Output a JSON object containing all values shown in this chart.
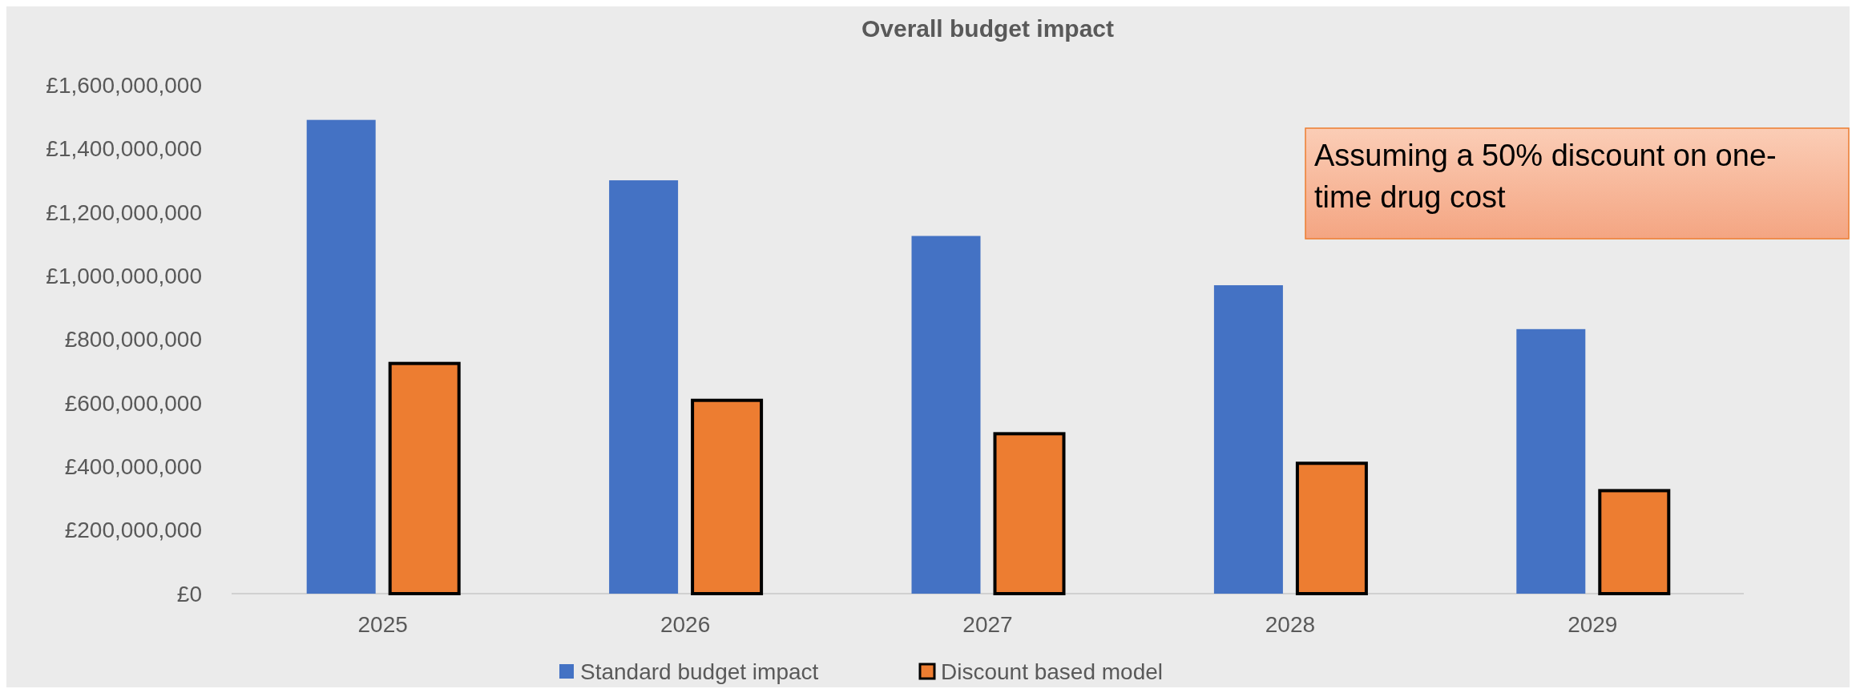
{
  "chart_data": {
    "type": "bar",
    "title": "Overall budget impact",
    "categories": [
      "2025",
      "2026",
      "2027",
      "2028",
      "2029"
    ],
    "series": [
      {
        "name": "Standard budget impact",
        "color": "#4472c4",
        "values": [
          1490000000,
          1300000000,
          1125000000,
          970000000,
          832000000
        ]
      },
      {
        "name": "Discount based model",
        "color": "#ed7d31",
        "values": [
          724000000,
          608000000,
          503000000,
          410000000,
          324000000
        ]
      }
    ],
    "ylim": [
      0,
      1600000000
    ],
    "yticks": [
      {
        "value": 0,
        "label": "£0"
      },
      {
        "value": 200000000,
        "label": "£200,000,000"
      },
      {
        "value": 400000000,
        "label": "£400,000,000"
      },
      {
        "value": 600000000,
        "label": "£600,000,000"
      },
      {
        "value": 800000000,
        "label": "£800,000,000"
      },
      {
        "value": 1000000000,
        "label": "£1,000,000,000"
      },
      {
        "value": 1200000000,
        "label": "£1,200,000,000"
      },
      {
        "value": 1400000000,
        "label": "£1,400,000,000"
      },
      {
        "value": 1600000000,
        "label": "£1,600,000,000"
      }
    ],
    "grid": false,
    "legend": "bottom",
    "annotations": [
      "Assuming a 50% discount on one-time drug cost"
    ]
  }
}
